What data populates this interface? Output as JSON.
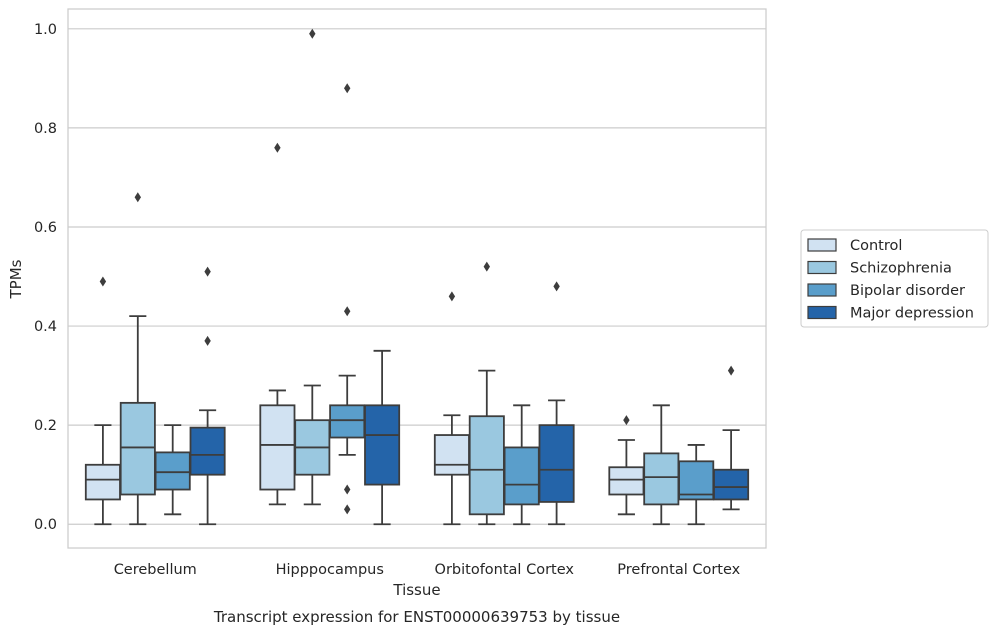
{
  "caption": "Transcript expression for ENST00000639753 by tissue",
  "chart_data": {
    "type": "box",
    "title": "",
    "xlabel": "Tissue",
    "ylabel": "TPMs",
    "ylim": [
      -0.048,
      1.04
    ],
    "yticks": [
      0.0,
      0.2,
      0.4,
      0.6,
      0.8,
      1.0
    ],
    "ytick_labels": [
      "0.0",
      "0.2",
      "0.4",
      "0.6",
      "0.8",
      "1.0"
    ],
    "grid": true,
    "legend_placement": "right",
    "categories": [
      "Cerebellum",
      "Hipppocampus",
      "Orbitofontal Cortex",
      "Prefrontal Cortex"
    ],
    "series": [
      {
        "name": "Control",
        "color": "#d1e2f2",
        "boxes": [
          {
            "whisker_low": 0.0,
            "q1": 0.05,
            "median": 0.09,
            "q3": 0.12,
            "whisker_high": 0.2,
            "outliers": [
              0.49
            ]
          },
          {
            "whisker_low": 0.04,
            "q1": 0.07,
            "median": 0.16,
            "q3": 0.24,
            "whisker_high": 0.27,
            "outliers": [
              0.76
            ]
          },
          {
            "whisker_low": 0.0,
            "q1": 0.1,
            "median": 0.12,
            "q3": 0.18,
            "whisker_high": 0.22,
            "outliers": [
              0.46
            ]
          },
          {
            "whisker_low": 0.02,
            "q1": 0.06,
            "median": 0.09,
            "q3": 0.115,
            "whisker_high": 0.17,
            "outliers": [
              0.21
            ]
          }
        ]
      },
      {
        "name": "Schizophrenia",
        "color": "#9ac8e0",
        "boxes": [
          {
            "whisker_low": 0.0,
            "q1": 0.06,
            "median": 0.155,
            "q3": 0.245,
            "whisker_high": 0.42,
            "outliers": [
              0.66
            ]
          },
          {
            "whisker_low": 0.04,
            "q1": 0.1,
            "median": 0.155,
            "q3": 0.21,
            "whisker_high": 0.28,
            "outliers": [
              0.99
            ]
          },
          {
            "whisker_low": 0.0,
            "q1": 0.02,
            "median": 0.11,
            "q3": 0.218,
            "whisker_high": 0.31,
            "outliers": [
              0.52
            ]
          },
          {
            "whisker_low": 0.0,
            "q1": 0.04,
            "median": 0.095,
            "q3": 0.143,
            "whisker_high": 0.24,
            "outliers": []
          }
        ]
      },
      {
        "name": "Bipolar disorder",
        "color": "#5a9ecb",
        "boxes": [
          {
            "whisker_low": 0.02,
            "q1": 0.07,
            "median": 0.105,
            "q3": 0.145,
            "whisker_high": 0.2,
            "outliers": []
          },
          {
            "whisker_low": 0.14,
            "q1": 0.175,
            "median": 0.21,
            "q3": 0.24,
            "whisker_high": 0.3,
            "outliers": [
              0.88,
              0.43,
              0.07,
              0.03
            ]
          },
          {
            "whisker_low": 0.0,
            "q1": 0.04,
            "median": 0.08,
            "q3": 0.155,
            "whisker_high": 0.24,
            "outliers": []
          },
          {
            "whisker_low": 0.0,
            "q1": 0.05,
            "median": 0.06,
            "q3": 0.127,
            "whisker_high": 0.16,
            "outliers": []
          }
        ]
      },
      {
        "name": "Major depression",
        "color": "#2464a9",
        "boxes": [
          {
            "whisker_low": 0.0,
            "q1": 0.1,
            "median": 0.14,
            "q3": 0.195,
            "whisker_high": 0.23,
            "outliers": [
              0.51,
              0.37
            ]
          },
          {
            "whisker_low": 0.0,
            "q1": 0.08,
            "median": 0.18,
            "q3": 0.24,
            "whisker_high": 0.35,
            "outliers": []
          },
          {
            "whisker_low": 0.0,
            "q1": 0.045,
            "median": 0.11,
            "q3": 0.2,
            "whisker_high": 0.25,
            "outliers": [
              0.48
            ]
          },
          {
            "whisker_low": 0.03,
            "q1": 0.05,
            "median": 0.075,
            "q3": 0.11,
            "whisker_high": 0.19,
            "outliers": [
              0.31
            ]
          }
        ]
      }
    ]
  }
}
